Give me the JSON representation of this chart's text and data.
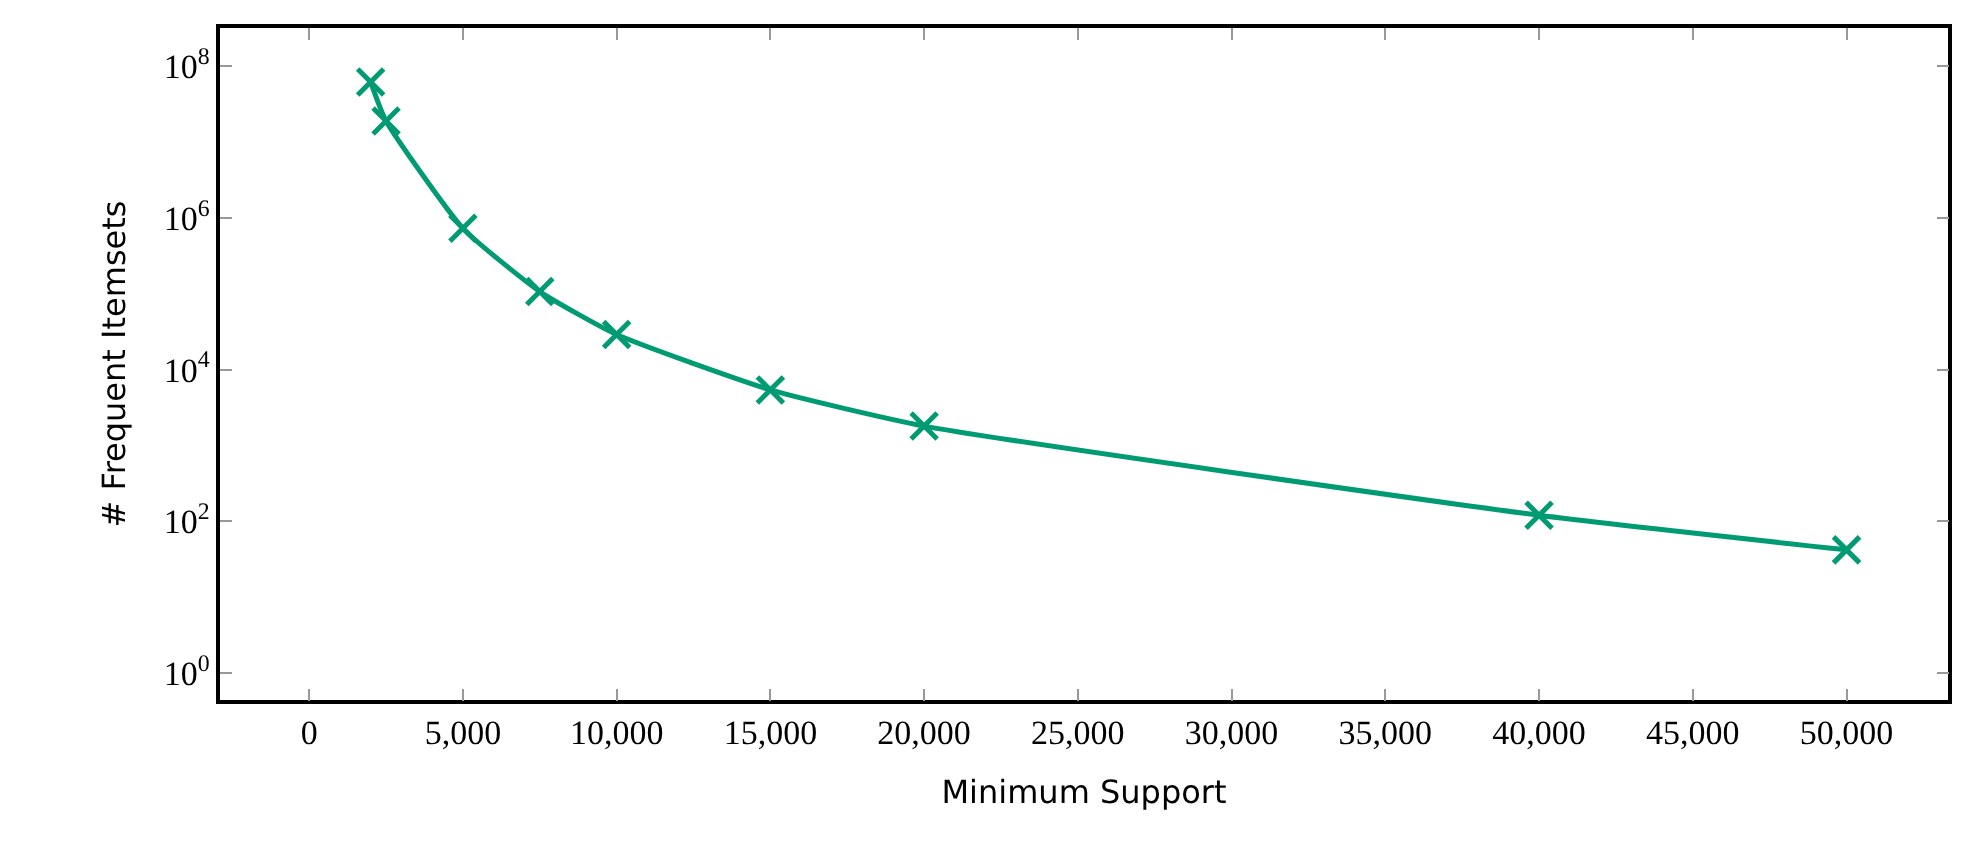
{
  "chart_data": {
    "type": "line",
    "xlabel": "Minimum Support",
    "ylabel": "# Frequent Itemsets",
    "log": "y",
    "marker": "cross",
    "line_style": "solid",
    "legend": false,
    "x": [
      2000,
      2500,
      5000,
      7500,
      10000,
      15000,
      20000,
      40000,
      50000
    ],
    "series": [
      {
        "color": "#009b72",
        "values": [
          62000000,
          19000000,
          730000,
          107000,
          29000,
          5400,
          1800,
          120,
          42
        ]
      }
    ],
    "xlim": [
      -2900,
      53300
    ],
    "ylim": [
      0.44,
      320000000
    ],
    "xticks": [
      {
        "value": 0,
        "label": "0"
      },
      {
        "value": 5000,
        "label": "5,000"
      },
      {
        "value": 10000,
        "label": "10,000"
      },
      {
        "value": 15000,
        "label": "15,000"
      },
      {
        "value": 20000,
        "label": "20,000"
      },
      {
        "value": 25000,
        "label": "25,000"
      },
      {
        "value": 30000,
        "label": "30,000"
      },
      {
        "value": 35000,
        "label": "35,000"
      },
      {
        "value": 40000,
        "label": "40,000"
      },
      {
        "value": 45000,
        "label": "45,000"
      },
      {
        "value": 50000,
        "label": "50,000"
      }
    ],
    "yticks": [
      {
        "value": 1,
        "label": "10$^{0}$"
      },
      {
        "value": 100,
        "label": "10$^{2}$"
      },
      {
        "value": 10000,
        "label": "10$^{4}$"
      },
      {
        "value": 1000000,
        "label": "10$^{6}$"
      },
      {
        "value": 100000000,
        "label": "10$^{8}$"
      }
    ]
  }
}
